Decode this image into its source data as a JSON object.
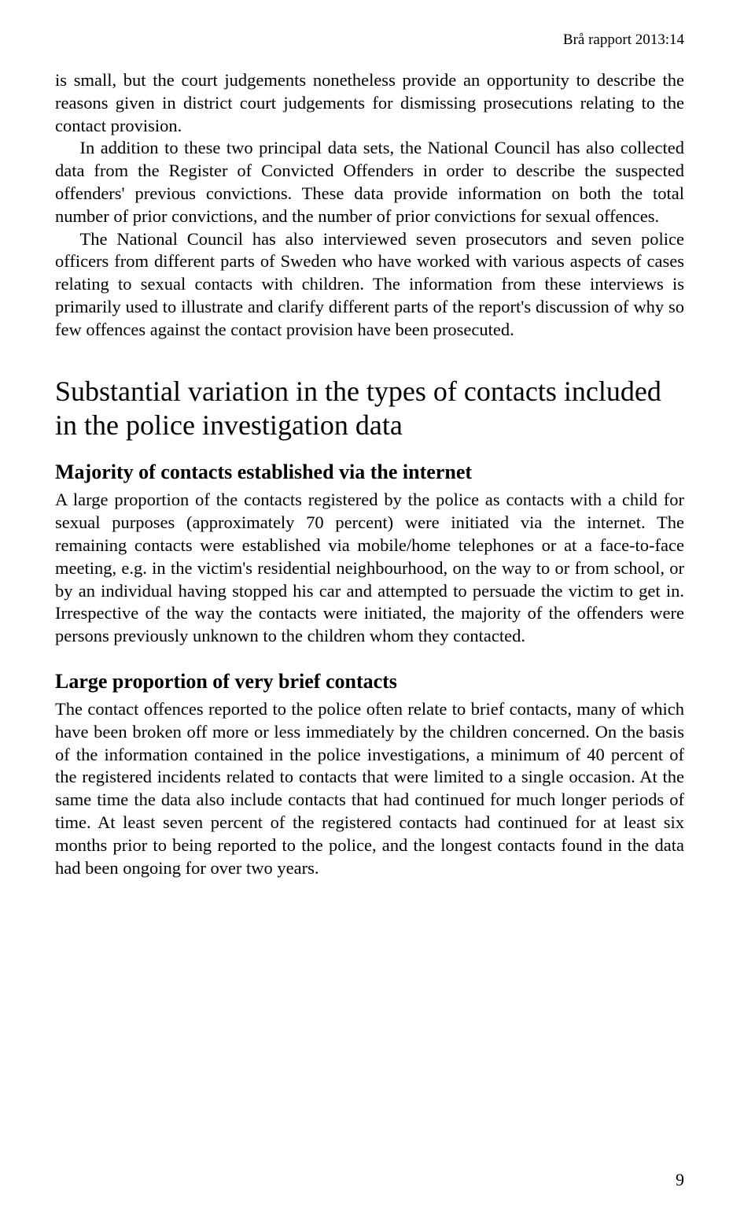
{
  "header": {
    "report_label": "Brå rapport 2013:14"
  },
  "paragraphs": {
    "p1": "is small, but the court judgements nonetheless provide an opportunity to describe the reasons given in district court judgements for dismissing prosecutions relating to the contact provision.",
    "p2": "In addition to these two principal data sets, the National Council has also collected data from the Register of Convicted Offenders in order to describe the suspected offenders' previous convictions. These data provide information on both the total number of prior convictions, and the number of prior convictions for sexual offences.",
    "p3": "The National Council has also interviewed seven prosecutors and seven police officers from different parts of Sweden who have worked with various aspects of cases relating to sexual contacts with children. The information from these interviews is primarily used to illustrate and clarify different parts of the report's discussion of why so few offences against the contact provision have been prosecuted."
  },
  "section": {
    "heading": "Substantial variation in the types of contacts included in the police investigation data",
    "sub1": {
      "title": "Majority of contacts established via the internet",
      "body": "A large proportion of the contacts registered by the police as contacts with a child for sexual purposes (approximately 70 percent) were initiated via the internet. The remaining contacts were established via mobile/home telephones or at a face-to-face meeting, e.g. in the victim's residential neighbourhood, on the way to or from school, or by an individual having stopped his car and attempted to persuade the victim to get in. Irrespective of the way the contacts were initiated, the majority of the offenders were persons previously unknown to the children whom they contacted."
    },
    "sub2": {
      "title": "Large proportion of very brief contacts",
      "body": "The contact offences reported to the police often relate to brief contacts, many of which have been broken off more or less immediately by the children concerned. On the basis of the information contained in the police investigations, a minimum of 40 percent of the registered incidents related to contacts that were limited to a single occasion. At the same time the data also include contacts that had continued for much longer periods of time. At least seven percent of the registered contacts had continued for at least six months prior to being reported to the police, and the longest contacts found in the data had been ongoing for over two years."
    }
  },
  "page_number": "9"
}
